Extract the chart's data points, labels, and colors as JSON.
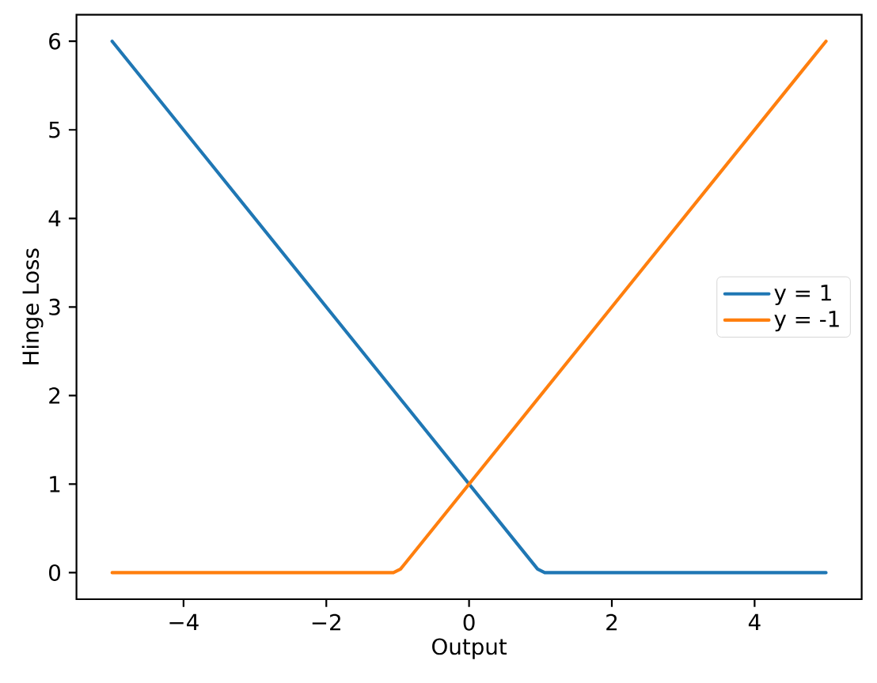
{
  "chart_data": {
    "type": "line",
    "xlabel": "Output",
    "ylabel": "Hinge Loss",
    "xlim": [
      -5.5,
      5.5
    ],
    "ylim": [
      -0.3,
      6.3
    ],
    "xticks": [
      {
        "value": -4,
        "label": "−4"
      },
      {
        "value": -2,
        "label": "−2"
      },
      0,
      2,
      4
    ],
    "yticks": [
      0,
      1,
      2,
      3,
      4,
      5,
      6
    ],
    "legend": "right",
    "series": [
      {
        "name": "y = 1",
        "color": "#1f77b4",
        "x": [
          -5,
          0.96,
          1.06,
          5
        ],
        "values": [
          6,
          0.04,
          0,
          0
        ]
      },
      {
        "name": "y = -1",
        "color": "#ff7f0e",
        "x": [
          -5,
          -1.06,
          -0.96,
          5
        ],
        "values": [
          0,
          0,
          0.04,
          6
        ]
      }
    ]
  }
}
